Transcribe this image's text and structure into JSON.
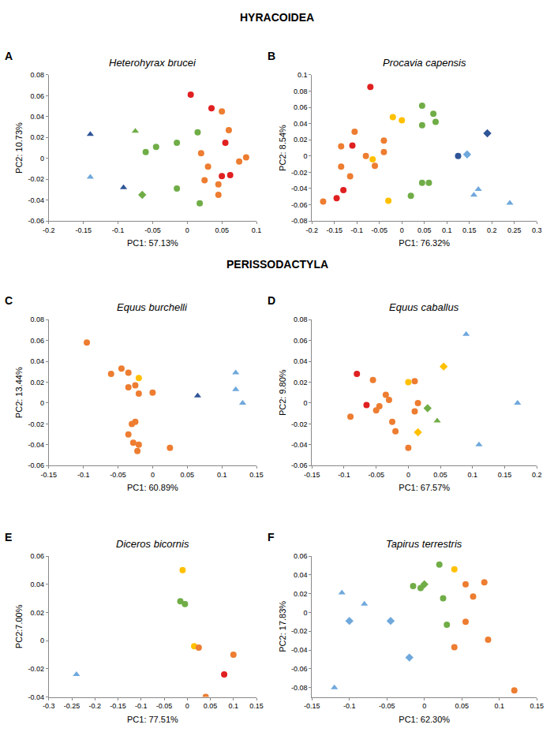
{
  "headings": [
    "HYRACOIDEA",
    "PERISSODACTYLA"
  ],
  "chart_data": [
    {
      "type": "scatter",
      "panel": "A",
      "title": "Heterohyrax brucei",
      "xlabel": "PC1: 57.13%",
      "ylabel": "PC2: 10.73%",
      "xlim": [
        -0.2,
        0.1
      ],
      "xticks": [
        -0.2,
        -0.15,
        -0.1,
        -0.05,
        0,
        0.05,
        0.1
      ],
      "ylim": [
        -0.06,
        0.08
      ],
      "yticks": [
        -0.06,
        -0.04,
        -0.02,
        0,
        0.02,
        0.04,
        0.06,
        0.08
      ],
      "series": [
        {
          "color": "#2f5597",
          "marker": "triangle",
          "x": [
            -0.14,
            -0.092
          ],
          "y": [
            0.023,
            -0.028
          ]
        },
        {
          "color": "#6fa8dc",
          "marker": "triangle",
          "x": [
            -0.14
          ],
          "y": [
            -0.018
          ]
        },
        {
          "color": "#70ad47",
          "marker": "triangle",
          "x": [
            -0.075
          ],
          "y": [
            0.026
          ]
        },
        {
          "color": "#70ad47",
          "marker": "diamond",
          "x": [
            -0.065
          ],
          "y": [
            -0.035
          ]
        },
        {
          "color": "#70ad47",
          "marker": "circle",
          "x": [
            -0.06,
            -0.045,
            -0.015,
            -0.015,
            0.015,
            0.018
          ],
          "y": [
            0.006,
            0.011,
            0.015,
            -0.029,
            0.025,
            -0.043
          ]
        },
        {
          "color": "#ed7d31",
          "marker": "circle",
          "x": [
            0.05,
            0.02,
            0.03,
            0.025,
            0.045,
            0.045,
            0.075,
            0.085,
            0.06
          ],
          "y": [
            0.045,
            0.005,
            -0.008,
            -0.021,
            -0.025,
            -0.035,
            -0.003,
            0.001,
            0.027
          ]
        },
        {
          "color": "#e02020",
          "marker": "circle",
          "x": [
            0.005,
            0.035,
            0.055,
            0.05,
            0.062
          ],
          "y": [
            0.061,
            0.048,
            0.015,
            -0.017,
            -0.016
          ]
        }
      ]
    },
    {
      "type": "scatter",
      "panel": "B",
      "title": "Procavia capensis",
      "xlabel": "PC1: 76.32%",
      "ylabel": "PC2: 8.54%",
      "xlim": [
        -0.2,
        0.3
      ],
      "xticks": [
        -0.2,
        -0.15,
        -0.1,
        -0.05,
        0,
        0.05,
        0.1,
        0.15,
        0.2,
        0.25,
        0.3
      ],
      "ylim": [
        -0.08,
        0.1
      ],
      "yticks": [
        -0.08,
        -0.06,
        -0.04,
        -0.02,
        0,
        0.02,
        0.04,
        0.06,
        0.08,
        0.1
      ],
      "series": [
        {
          "color": "#e02020",
          "marker": "circle",
          "x": [
            -0.07,
            -0.11,
            -0.13,
            -0.145
          ],
          "y": [
            0.085,
            0.013,
            -0.042,
            -0.052
          ]
        },
        {
          "color": "#ed7d31",
          "marker": "circle",
          "x": [
            -0.175,
            -0.135,
            -0.115,
            -0.105,
            -0.08,
            -0.06,
            -0.04,
            -0.04,
            -0.135
          ],
          "y": [
            -0.056,
            0.012,
            -0.025,
            0.03,
            0.0,
            -0.012,
            0.019,
            0.005,
            -0.013
          ]
        },
        {
          "color": "#ffc000",
          "marker": "circle",
          "x": [
            -0.02,
            0.0,
            -0.065,
            -0.03
          ],
          "y": [
            0.048,
            0.044,
            -0.004,
            -0.055
          ]
        },
        {
          "color": "#70ad47",
          "marker": "circle",
          "x": [
            0.045,
            0.045,
            0.07,
            0.075,
            0.02,
            0.045,
            0.06
          ],
          "y": [
            0.062,
            0.038,
            0.052,
            0.042,
            -0.049,
            -0.033,
            -0.033
          ]
        },
        {
          "color": "#2f5597",
          "marker": "circle",
          "x": [
            0.125
          ],
          "y": [
            0.0
          ]
        },
        {
          "color": "#6fa8dc",
          "marker": "diamond",
          "x": [
            0.145
          ],
          "y": [
            0.002
          ]
        },
        {
          "color": "#2f5597",
          "marker": "diamond",
          "x": [
            0.19
          ],
          "y": [
            0.028
          ]
        },
        {
          "color": "#6fa8dc",
          "marker": "triangle",
          "x": [
            0.16,
            0.17,
            0.24
          ],
          "y": [
            -0.048,
            -0.041,
            -0.058
          ]
        }
      ]
    },
    {
      "type": "scatter",
      "panel": "C",
      "title": "Equus burchelli",
      "xlabel": "PC1: 60.89%",
      "ylabel": "PC2: 13.44%",
      "xlim": [
        -0.15,
        0.15
      ],
      "xticks": [
        -0.15,
        -0.1,
        -0.05,
        0,
        0.05,
        0.1,
        0.15
      ],
      "ylim": [
        -0.06,
        0.08
      ],
      "yticks": [
        -0.06,
        -0.04,
        -0.02,
        0,
        0.02,
        0.04,
        0.06,
        0.08
      ],
      "series": [
        {
          "color": "#ed7d31",
          "marker": "circle",
          "x": [
            -0.095,
            -0.06,
            -0.045,
            -0.035,
            -0.025,
            -0.035,
            -0.02,
            0.0,
            -0.03,
            -0.025,
            -0.035,
            -0.028,
            -0.02,
            -0.022,
            0.025
          ],
          "y": [
            0.058,
            0.028,
            0.033,
            0.029,
            0.017,
            0.015,
            0.009,
            0.01,
            -0.02,
            -0.018,
            -0.03,
            -0.038,
            -0.04,
            -0.046,
            -0.043
          ]
        },
        {
          "color": "#ffc000",
          "marker": "circle",
          "x": [
            -0.02
          ],
          "y": [
            0.024
          ]
        },
        {
          "color": "#2f5597",
          "marker": "triangle",
          "x": [
            0.065
          ],
          "y": [
            0.007
          ]
        },
        {
          "color": "#6fa8dc",
          "marker": "triangle",
          "x": [
            0.12,
            0.12,
            0.13
          ],
          "y": [
            0.029,
            0.013,
            0.0
          ]
        }
      ]
    },
    {
      "type": "scatter",
      "panel": "D",
      "title": "Equus caballus",
      "xlabel": "PC1: 67.57%",
      "ylabel": "PC2: 9.80%",
      "xlim": [
        -0.15,
        0.2
      ],
      "xticks": [
        -0.15,
        -0.1,
        -0.05,
        0,
        0.05,
        0.1,
        0.15,
        0.2
      ],
      "ylim": [
        -0.06,
        0.08
      ],
      "yticks": [
        -0.06,
        -0.04,
        -0.02,
        0,
        0.02,
        0.04,
        0.06,
        0.08
      ],
      "series": [
        {
          "color": "#e02020",
          "marker": "circle",
          "x": [
            -0.08,
            -0.065
          ],
          "y": [
            0.028,
            -0.002
          ]
        },
        {
          "color": "#ed7d31",
          "marker": "circle",
          "x": [
            -0.055,
            -0.09,
            -0.035,
            -0.03,
            -0.045,
            -0.05,
            -0.025,
            -0.02,
            0.0,
            0.01,
            0.01,
            0.015
          ],
          "y": [
            0.022,
            -0.013,
            0.008,
            0.003,
            -0.003,
            -0.007,
            -0.018,
            -0.027,
            -0.043,
            0.021,
            -0.008,
            0.0
          ]
        },
        {
          "color": "#ffc000",
          "marker": "circle",
          "x": [
            0.0
          ],
          "y": [
            0.02
          ]
        },
        {
          "color": "#ffc000",
          "marker": "diamond",
          "x": [
            0.055,
            0.015
          ],
          "y": [
            0.035,
            -0.028
          ]
        },
        {
          "color": "#70ad47",
          "marker": "diamond",
          "x": [
            0.03
          ],
          "y": [
            -0.005
          ]
        },
        {
          "color": "#70ad47",
          "marker": "triangle",
          "x": [
            0.045
          ],
          "y": [
            -0.017
          ]
        },
        {
          "color": "#6fa8dc",
          "marker": "triangle",
          "x": [
            0.09,
            0.11,
            0.17
          ],
          "y": [
            0.066,
            -0.04,
            0.0
          ]
        }
      ]
    },
    {
      "type": "scatter",
      "panel": "E",
      "title": "Diceros bicornis",
      "xlabel": "PC1: 77.51%",
      "ylabel": "PC2:7.00%",
      "xlim": [
        -0.3,
        0.15
      ],
      "xticks": [
        -0.3,
        -0.25,
        -0.2,
        -0.15,
        -0.1,
        -0.05,
        0,
        0.05,
        0.1,
        0.15
      ],
      "ylim": [
        -0.04,
        0.06
      ],
      "yticks": [
        -0.04,
        -0.02,
        0,
        0.02,
        0.04,
        0.06
      ],
      "series": [
        {
          "color": "#6fa8dc",
          "marker": "triangle",
          "x": [
            -0.24
          ],
          "y": [
            -0.024
          ]
        },
        {
          "color": "#ffc000",
          "marker": "circle",
          "x": [
            -0.01,
            0.015
          ],
          "y": [
            0.05,
            -0.004
          ]
        },
        {
          "color": "#70ad47",
          "marker": "circle",
          "x": [
            -0.015,
            -0.005
          ],
          "y": [
            0.028,
            0.026
          ]
        },
        {
          "color": "#ed7d31",
          "marker": "circle",
          "x": [
            0.025,
            0.04,
            0.1
          ],
          "y": [
            -0.005,
            -0.04,
            -0.01
          ]
        },
        {
          "color": "#e02020",
          "marker": "circle",
          "x": [
            0.08
          ],
          "y": [
            -0.024
          ]
        }
      ]
    },
    {
      "type": "scatter",
      "panel": "F",
      "title": "Tapirus terrestris",
      "xlabel": "PC1: 62.30%",
      "ylabel": "PC2: 17.83%",
      "xlim": [
        -0.15,
        0.15
      ],
      "xticks": [
        -0.15,
        -0.1,
        -0.05,
        0,
        0.05,
        0.1,
        0.15
      ],
      "ylim": [
        -0.09,
        0.06
      ],
      "yticks": [
        -0.08,
        -0.06,
        -0.04,
        -0.02,
        0,
        0.02,
        0.04,
        0.06
      ],
      "series": [
        {
          "color": "#6fa8dc",
          "marker": "triangle",
          "x": [
            -0.11,
            -0.08,
            -0.12
          ],
          "y": [
            0.021,
            0.009,
            -0.08
          ]
        },
        {
          "color": "#6fa8dc",
          "marker": "diamond",
          "x": [
            -0.1,
            -0.045,
            -0.02
          ],
          "y": [
            -0.009,
            -0.009,
            -0.048
          ]
        },
        {
          "color": "#70ad47",
          "marker": "circle",
          "x": [
            -0.015,
            -0.005,
            0.02,
            0.025,
            0.03
          ],
          "y": [
            0.028,
            0.026,
            0.051,
            0.015,
            -0.013
          ]
        },
        {
          "color": "#70ad47",
          "marker": "diamond",
          "x": [
            0.0
          ],
          "y": [
            0.03
          ]
        },
        {
          "color": "#ffc000",
          "marker": "circle",
          "x": [
            0.04
          ],
          "y": [
            0.046
          ]
        },
        {
          "color": "#ed7d31",
          "marker": "circle",
          "x": [
            0.055,
            0.065,
            0.08,
            0.055,
            0.085,
            0.04,
            0.12
          ],
          "y": [
            0.03,
            0.017,
            0.032,
            -0.01,
            -0.029,
            -0.037,
            -0.083
          ]
        }
      ]
    }
  ]
}
